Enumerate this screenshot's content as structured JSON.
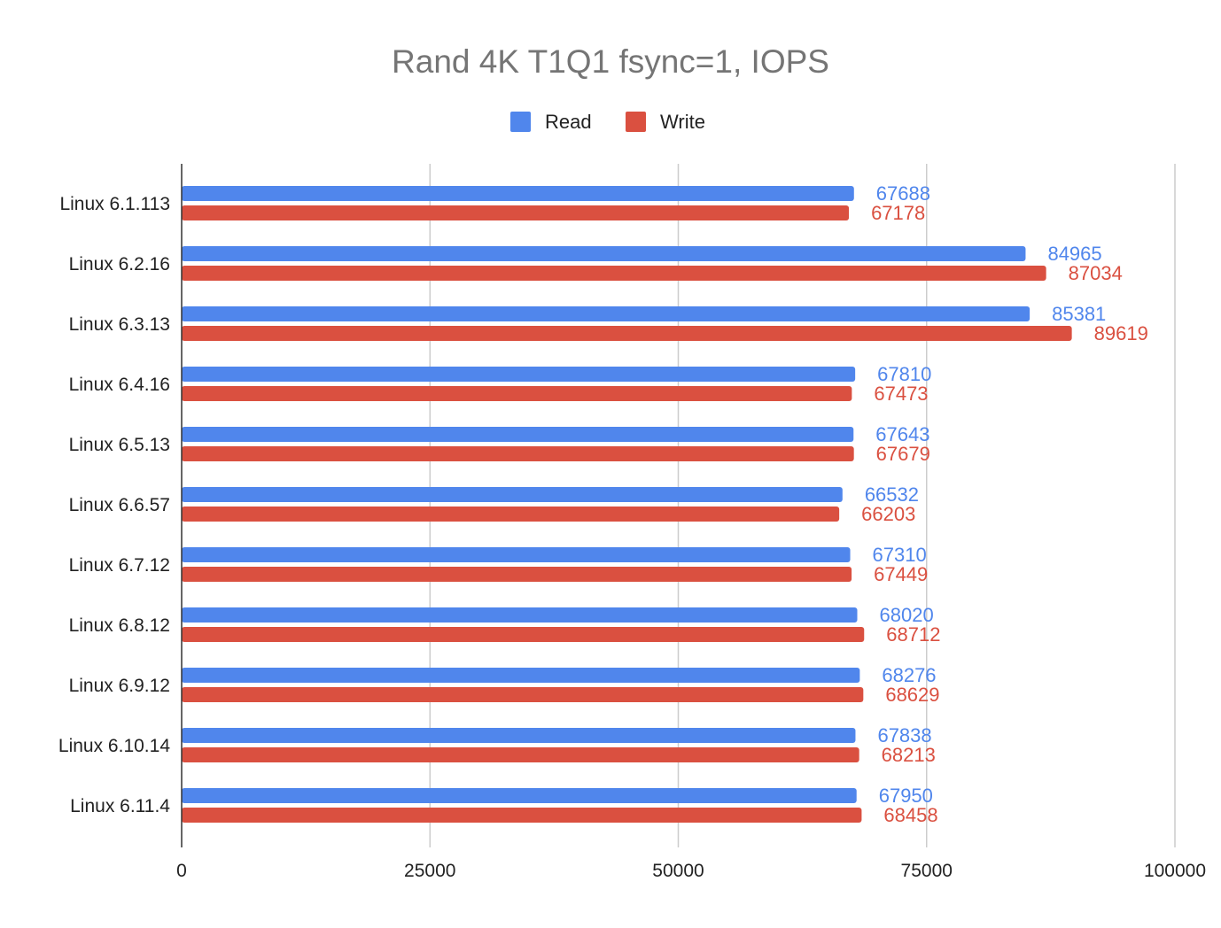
{
  "chart_data": {
    "type": "bar",
    "orientation": "horizontal",
    "title": "Rand 4K T1Q1 fsync=1, IOPS",
    "xlabel": "",
    "ylabel": "",
    "xlim": [
      0,
      100000
    ],
    "x_ticks": [
      "0",
      "25000",
      "50000",
      "75000",
      "100000"
    ],
    "grid": true,
    "legend_position": "top",
    "categories": [
      "Linux 6.1.113",
      "Linux 6.2.16",
      "Linux 6.3.13",
      "Linux 6.4.16",
      "Linux 6.5.13",
      "Linux 6.6.57",
      "Linux 6.7.12",
      "Linux 6.8.12",
      "Linux 6.9.12",
      "Linux 6.10.14",
      "Linux 6.11.4"
    ],
    "series": [
      {
        "name": "Read",
        "color": "#5086ec",
        "values": [
          67688,
          84965,
          85381,
          67810,
          67643,
          66532,
          67310,
          68020,
          68276,
          67838,
          67950
        ]
      },
      {
        "name": "Write",
        "color": "#da5040",
        "values": [
          67178,
          87034,
          89619,
          67473,
          67679,
          66203,
          67449,
          68712,
          68629,
          68213,
          68458
        ]
      }
    ]
  }
}
